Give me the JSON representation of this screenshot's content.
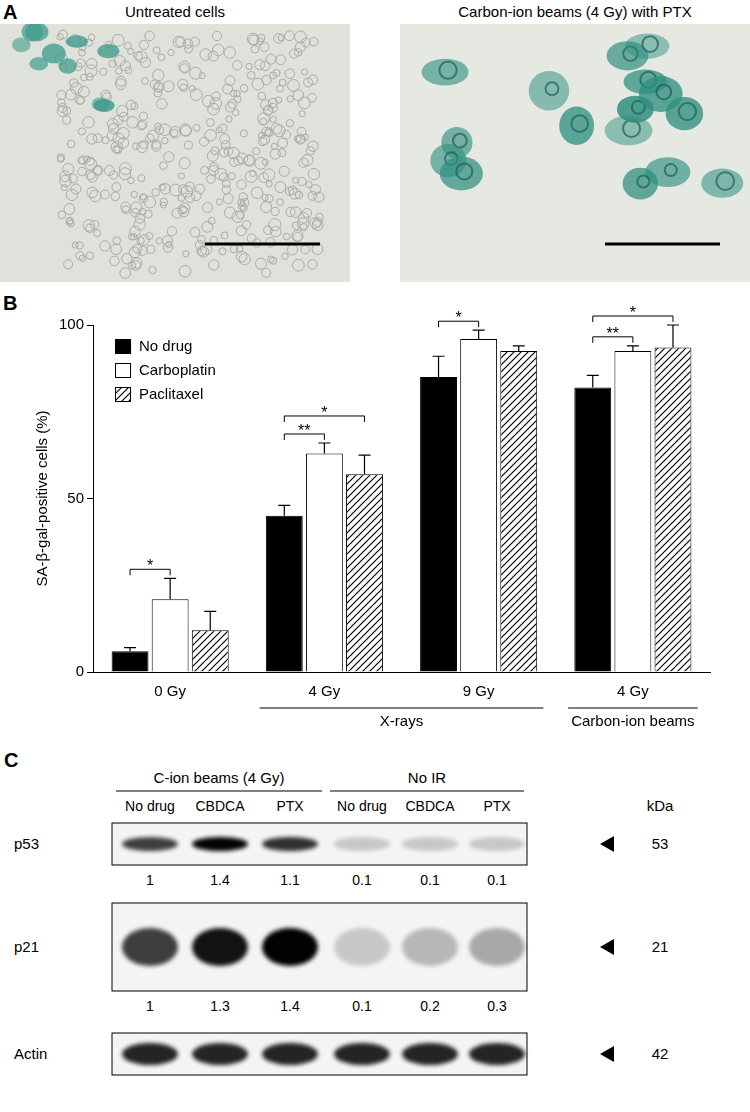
{
  "panel_a": {
    "panel_label": "A",
    "images": [
      {
        "caption": "Untreated cells"
      },
      {
        "caption": "Carbon-ion beams (4 Gy) with PTX"
      }
    ]
  },
  "chart_data": {
    "type": "bar",
    "panel_label": "B",
    "y_label": "SA-β-gal-positive cells (%)",
    "categories": [
      "0 Gy",
      "4 Gy",
      "9 Gy",
      "4 Gy"
    ],
    "groups": [
      {
        "label": "X-rays",
        "from": 1,
        "to": 2
      },
      {
        "label": "Carbon-ion beams",
        "from": 3,
        "to": 3
      }
    ],
    "series": [
      {
        "name": "No drug",
        "color": "#000000",
        "values": [
          6,
          45,
          85,
          82
        ],
        "errors": [
          1,
          3,
          6,
          3.5
        ]
      },
      {
        "name": "Carboplatin",
        "color": "#ffffff",
        "values": [
          21,
          63,
          96,
          92.5
        ],
        "errors": [
          6,
          3,
          2.5,
          1.5
        ]
      },
      {
        "name": "Paclitaxel",
        "color": "#000000",
        "line_style": "diagonal",
        "values": [
          12,
          57,
          92.5,
          93.5
        ],
        "errors": [
          5.5,
          5.5,
          1.5,
          6.5
        ]
      }
    ],
    "significance": [
      {
        "category": 0,
        "series": [
          0,
          1
        ],
        "label": "*"
      },
      {
        "category": 1,
        "series": [
          0,
          1
        ],
        "label": "**"
      },
      {
        "category": 1,
        "series": [
          0,
          2
        ],
        "label": "*"
      },
      {
        "category": 2,
        "series": [
          0,
          1
        ],
        "label": "*"
      },
      {
        "category": 3,
        "series": [
          0,
          1
        ],
        "label": "**"
      },
      {
        "category": 3,
        "series": [
          0,
          2
        ],
        "label": "*"
      }
    ],
    "ylim": [
      0,
      100
    ],
    "yticks": [
      0,
      50,
      100
    ],
    "grid": false,
    "legend": "upper left"
  },
  "panel_c": {
    "panel_label": "C",
    "groups": [
      {
        "label": "C-ion beams (4 Gy)",
        "lanes": [
          "No drug",
          "CBDCA",
          "PTX"
        ]
      },
      {
        "label": "No IR",
        "lanes": [
          "No drug",
          "CBDCA",
          "PTX"
        ]
      }
    ],
    "kda_label": "kDa",
    "rows": [
      {
        "protein": "p53",
        "kda": 53,
        "quantification": [
          1,
          1.4,
          1.1,
          0.1,
          0.1,
          0.1
        ]
      },
      {
        "protein": "p21",
        "kda": 21,
        "quantification": [
          1,
          1.3,
          1.4,
          0.1,
          0.2,
          0.3
        ]
      },
      {
        "protein": "Actin",
        "kda": 42
      }
    ]
  }
}
